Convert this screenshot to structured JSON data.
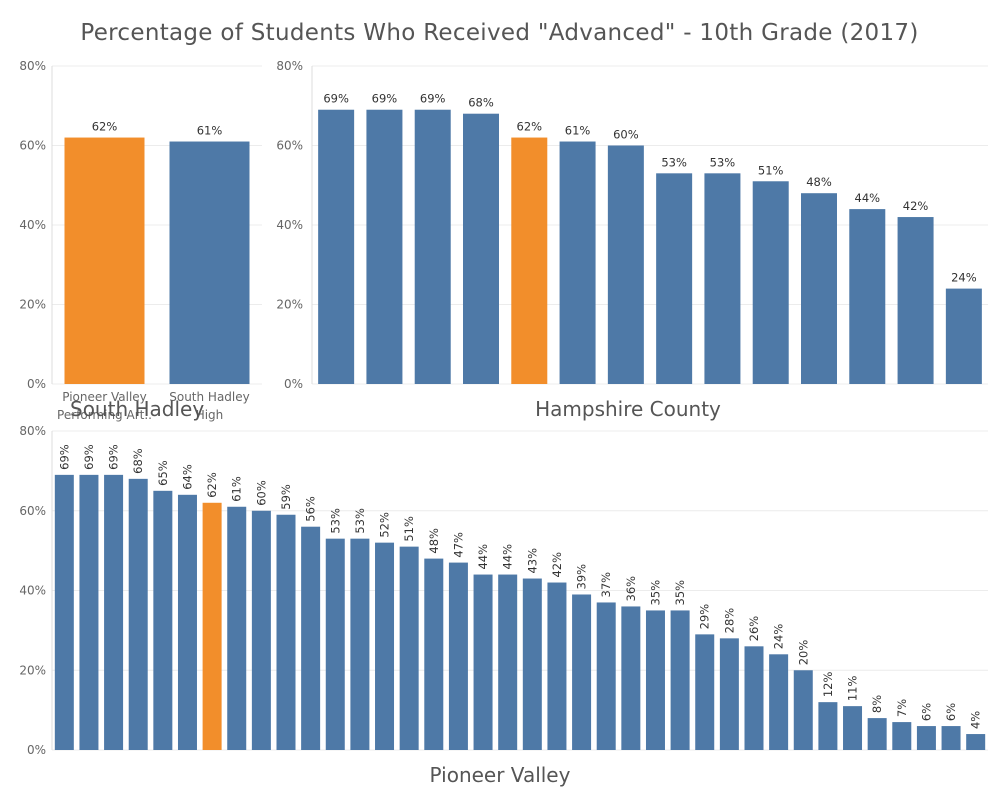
{
  "title": "Percentage of Students Who Received \"Advanced\" - 10th Grade (2017)",
  "colors": {
    "highlight": "#f28e2b",
    "base": "#4e79a7"
  },
  "chart_data": [
    {
      "type": "bar",
      "panel": "South Hadley",
      "title": "South Hadley",
      "categories": [
        "Pioneer Valley Performing Art..",
        "South Hadley High"
      ],
      "category_lines": [
        [
          "Pioneer Valley",
          "Performing Art.."
        ],
        [
          "South Hadley",
          "High"
        ]
      ],
      "values": [
        62,
        61
      ],
      "labels": [
        "62%",
        "61%"
      ],
      "highlight_index": 0,
      "ylim": [
        0,
        80
      ],
      "yticks": [
        0,
        20,
        40,
        60,
        80
      ],
      "ytick_labels": [
        "0%",
        "20%",
        "40%",
        "60%",
        "80%"
      ],
      "label_orientation": "horizontal"
    },
    {
      "type": "bar",
      "panel": "Hampshire County",
      "title": "Hampshire County",
      "values": [
        69,
        69,
        69,
        68,
        62,
        61,
        60,
        53,
        53,
        51,
        48,
        44,
        42,
        24
      ],
      "labels": [
        "69%",
        "69%",
        "69%",
        "68%",
        "62%",
        "61%",
        "60%",
        "53%",
        "53%",
        "51%",
        "48%",
        "44%",
        "42%",
        "24%"
      ],
      "highlight_index": 4,
      "ylim": [
        0,
        80
      ],
      "yticks": [
        0,
        20,
        40,
        60,
        80
      ],
      "ytick_labels": [
        "0%",
        "20%",
        "40%",
        "60%",
        "80%"
      ],
      "label_orientation": "horizontal"
    },
    {
      "type": "bar",
      "panel": "Pioneer Valley",
      "title": "Pioneer Valley",
      "values": [
        69,
        69,
        69,
        68,
        65,
        64,
        62,
        61,
        60,
        59,
        56,
        53,
        53,
        52,
        51,
        48,
        47,
        44,
        44,
        43,
        42,
        39,
        37,
        36,
        35,
        35,
        29,
        28,
        26,
        24,
        20,
        12,
        11,
        8,
        7,
        6,
        6,
        4
      ],
      "labels": [
        "69%",
        "69%",
        "69%",
        "68%",
        "65%",
        "64%",
        "62%",
        "61%",
        "60%",
        "59%",
        "56%",
        "53%",
        "53%",
        "52%",
        "51%",
        "48%",
        "47%",
        "44%",
        "44%",
        "43%",
        "42%",
        "39%",
        "37%",
        "36%",
        "35%",
        "35%",
        "29%",
        "28%",
        "26%",
        "24%",
        "20%",
        "12%",
        "11%",
        "8%",
        "7%",
        "6%",
        "6%",
        "4%"
      ],
      "highlight_index": 6,
      "ylim": [
        0,
        80
      ],
      "yticks": [
        0,
        20,
        40,
        60,
        80
      ],
      "ytick_labels": [
        "0%",
        "20%",
        "40%",
        "60%",
        "80%"
      ],
      "label_orientation": "vertical"
    }
  ]
}
